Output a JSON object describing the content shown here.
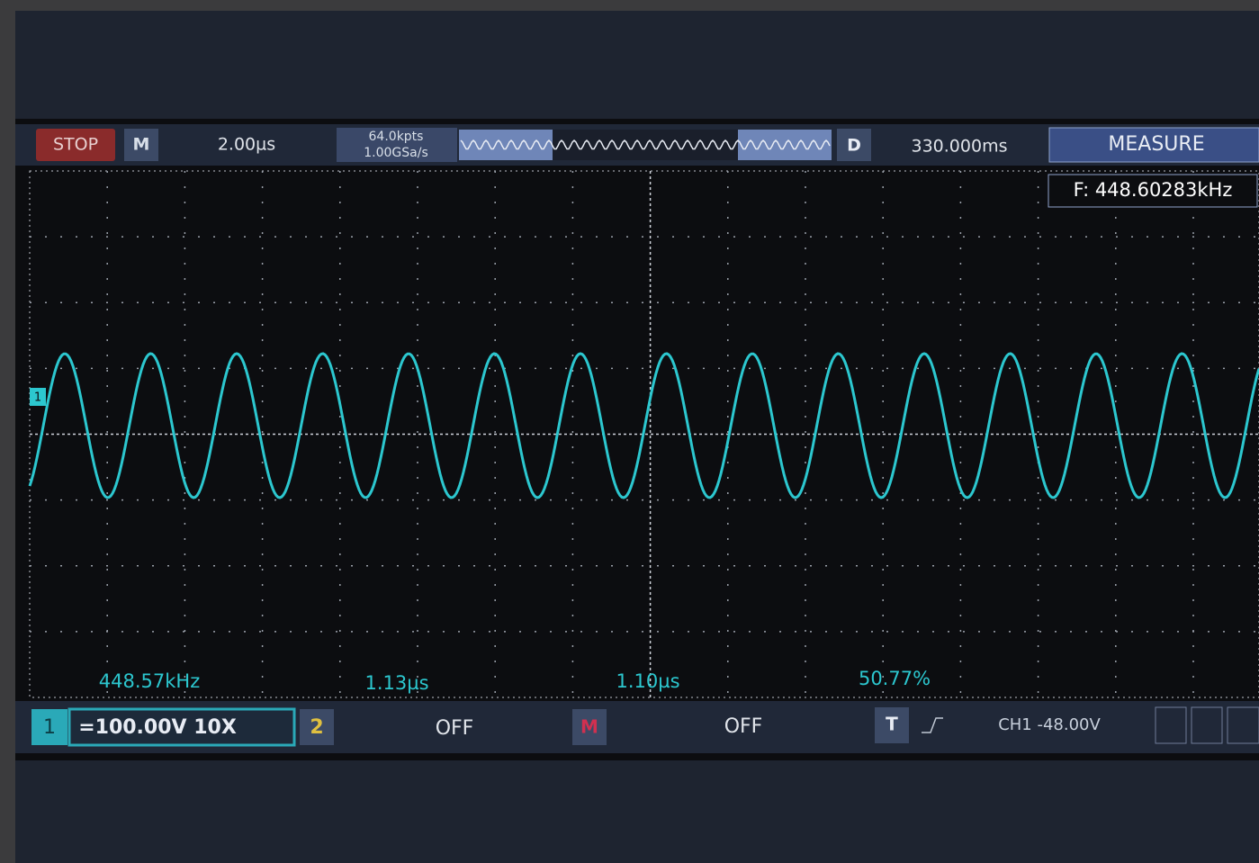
{
  "top_bar": {
    "status": "STOP",
    "mode": "M",
    "timebase": "2.00µs",
    "memory_depth": "64.0kpts",
    "sample_rate": "1.00GSa/s",
    "trigger_mode": "D",
    "trigger_offset": "330.000ms",
    "menu": "MEASURE"
  },
  "measurement_box": "F: 448.60283kHz",
  "readouts": [
    "448.57kHz",
    "1.13µs",
    "1.10µs",
    "50.77%"
  ],
  "markers": {
    "channel": "1"
  },
  "bottom_bar": {
    "ch1": "1",
    "ch1_settings": "=100.00V 10X",
    "ch2": "2",
    "ch2_state": "OFF",
    "math": "M",
    "math_state": "OFF",
    "trigger": "T",
    "trigger_level": "CH1 -48.00V"
  }
}
